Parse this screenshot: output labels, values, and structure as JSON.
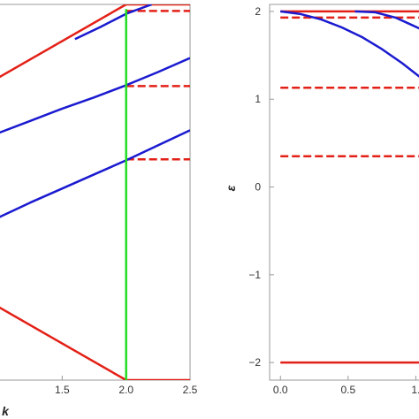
{
  "chart_data": [
    {
      "type": "line",
      "xlabel": "k",
      "ylabel": "",
      "xlim": [
        1.0,
        2.5
      ],
      "ylim": [
        -2.0,
        2.0
      ],
      "x_ticks": [
        1.5,
        2.0,
        2.5
      ],
      "x_tick_labels": [
        "1.5",
        "2.0",
        "2.5"
      ],
      "y_ticks": [],
      "grid": false,
      "series": [
        {
          "style": "solid",
          "color": "#e32017",
          "points": [
            [
              1.0,
              1.22
            ],
            [
              2.0,
              2.0
            ]
          ]
        },
        {
          "style": "solid",
          "color": "#e32017",
          "points": [
            [
              2.0,
              2.0
            ],
            [
              2.5,
              2.0
            ]
          ]
        },
        {
          "style": "solid",
          "color": "#e32017",
          "points": [
            [
              1.0,
              -1.22
            ],
            [
              2.0,
              -2.0
            ]
          ]
        },
        {
          "style": "solid",
          "color": "#e32017",
          "points": [
            [
              2.0,
              -2.0
            ],
            [
              2.5,
              -2.0
            ]
          ]
        },
        {
          "style": "dashed",
          "color": "#e32017",
          "points": [
            [
              2.0,
              1.93
            ],
            [
              2.5,
              1.93
            ]
          ]
        },
        {
          "style": "dashed",
          "color": "#e32017",
          "points": [
            [
              2.0,
              1.13
            ],
            [
              2.5,
              1.13
            ]
          ]
        },
        {
          "style": "dashed",
          "color": "#e32017",
          "points": [
            [
              2.0,
              0.35
            ],
            [
              2.5,
              0.35
            ]
          ]
        },
        {
          "style": "solid",
          "color": "#1a1ad0",
          "points": [
            [
              1.6,
              1.63
            ],
            [
              1.8,
              1.76
            ],
            [
              2.0,
              1.9
            ],
            [
              2.2,
              2.0
            ]
          ]
        },
        {
          "style": "solid",
          "color": "#1a1ad0",
          "points": [
            [
              1.0,
              0.63
            ],
            [
              1.25,
              0.76
            ],
            [
              1.5,
              0.89
            ],
            [
              1.75,
              1.01
            ],
            [
              2.0,
              1.14
            ],
            [
              2.25,
              1.28
            ],
            [
              2.5,
              1.43
            ]
          ]
        },
        {
          "style": "solid",
          "color": "#1a1ad0",
          "points": [
            [
              1.0,
              -0.27
            ],
            [
              1.25,
              -0.11
            ],
            [
              1.5,
              0.04
            ],
            [
              1.75,
              0.19
            ],
            [
              2.0,
              0.34
            ],
            [
              2.25,
              0.5
            ],
            [
              2.5,
              0.66
            ]
          ]
        },
        {
          "style": "solid",
          "color": "#22dd22",
          "points": [
            [
              2.0,
              -2.0
            ],
            [
              2.0,
              1.95
            ]
          ]
        }
      ]
    },
    {
      "type": "line",
      "xlabel": "",
      "ylabel": "ε",
      "xlim": [
        -0.08,
        1.05
      ],
      "ylim": [
        -2.2,
        2.08
      ],
      "x_ticks": [
        0.0,
        0.5,
        1.0
      ],
      "x_tick_labels": [
        "0.0",
        "0.5",
        "1."
      ],
      "y_ticks": [
        2,
        1,
        0,
        -1,
        -2
      ],
      "y_tick_labels": [
        "2",
        "1",
        "0",
        "−1",
        "−2"
      ],
      "grid": false,
      "series": [
        {
          "style": "solid",
          "color": "#e32017",
          "points": [
            [
              0.0,
              2.0
            ],
            [
              1.05,
              2.0
            ]
          ]
        },
        {
          "style": "solid",
          "color": "#e32017",
          "points": [
            [
              0.0,
              -2.0
            ],
            [
              1.05,
              -2.0
            ]
          ]
        },
        {
          "style": "dashed",
          "color": "#e32017",
          "points": [
            [
              0.0,
              1.93
            ],
            [
              1.05,
              1.93
            ]
          ]
        },
        {
          "style": "dashed",
          "color": "#e32017",
          "points": [
            [
              0.0,
              1.13
            ],
            [
              1.05,
              1.13
            ]
          ]
        },
        {
          "style": "dashed",
          "color": "#e32017",
          "points": [
            [
              0.0,
              0.35
            ],
            [
              1.05,
              0.35
            ]
          ]
        },
        {
          "style": "solid",
          "color": "#1a1ad0",
          "points": [
            [
              0.0,
              2.0
            ],
            [
              0.15,
              1.97
            ],
            [
              0.3,
              1.91
            ],
            [
              0.45,
              1.82
            ],
            [
              0.6,
              1.71
            ],
            [
              0.75,
              1.57
            ],
            [
              0.9,
              1.41
            ],
            [
              1.05,
              1.23
            ]
          ]
        },
        {
          "style": "solid",
          "color": "#1a1ad0",
          "points": [
            [
              0.55,
              2.0
            ],
            [
              0.7,
              1.99
            ],
            [
              0.85,
              1.93
            ],
            [
              0.95,
              1.86
            ],
            [
              1.05,
              1.79
            ]
          ]
        }
      ]
    }
  ]
}
